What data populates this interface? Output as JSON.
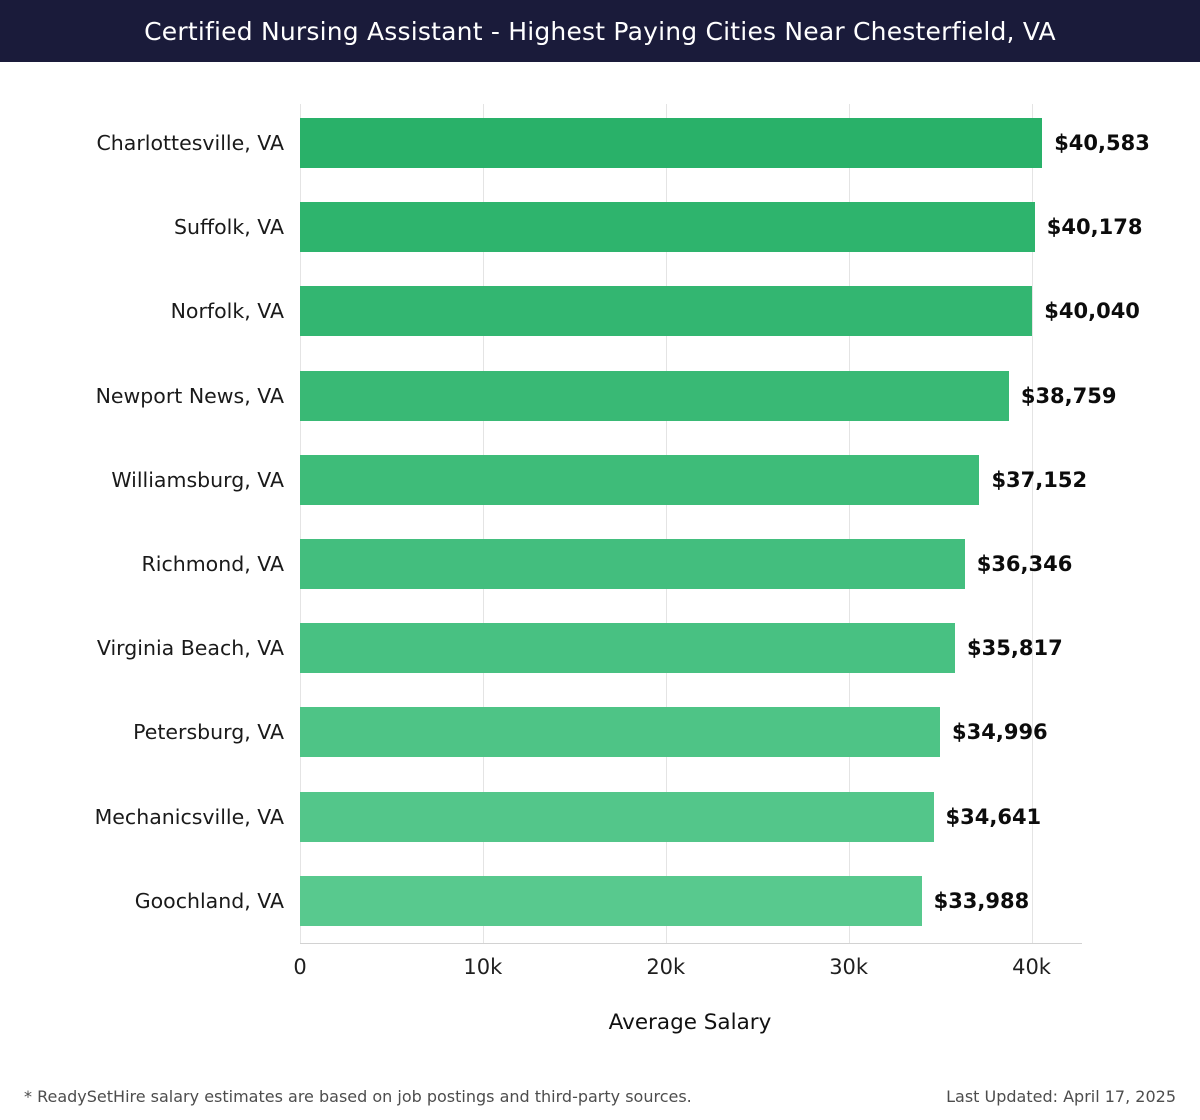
{
  "header": {
    "title": "Certified Nursing Assistant - Highest Paying Cities Near Chesterfield, VA",
    "bg_color": "#1a1b3a"
  },
  "chart_data": {
    "type": "bar",
    "orientation": "horizontal",
    "title": "Certified Nursing Assistant - Highest Paying Cities Near Chesterfield, VA",
    "categories": [
      "Charlottesville, VA",
      "Suffolk, VA",
      "Norfolk, VA",
      "Newport News, VA",
      "Williamsburg, VA",
      "Richmond, VA",
      "Virginia Beach, VA",
      "Petersburg, VA",
      "Mechanicsville, VA",
      "Goochland, VA"
    ],
    "values": [
      40583,
      40178,
      40040,
      38759,
      37152,
      36346,
      35817,
      34996,
      34641,
      33988
    ],
    "value_labels": [
      "$40,583",
      "$40,178",
      "$40,040",
      "$38,759",
      "$37,152",
      "$36,346",
      "$35,817",
      "$34,996",
      "$34,641",
      "$33,988"
    ],
    "xlabel": "Average Salary",
    "ylabel": "",
    "x_ticks": [
      "0",
      "10k",
      "20k",
      "30k",
      "40k"
    ],
    "x_tick_values": [
      0,
      10000,
      20000,
      30000,
      40000
    ],
    "xlim": [
      0,
      42650
    ],
    "grid": true,
    "bar_color_start": "#29b169",
    "bar_color_end": "#58c98e",
    "grid_color": "#e4e4e4"
  },
  "footer": {
    "note": "* ReadySetHire salary estimates are based on job postings and third-party sources.",
    "updated": "Last Updated: April 17, 2025"
  }
}
